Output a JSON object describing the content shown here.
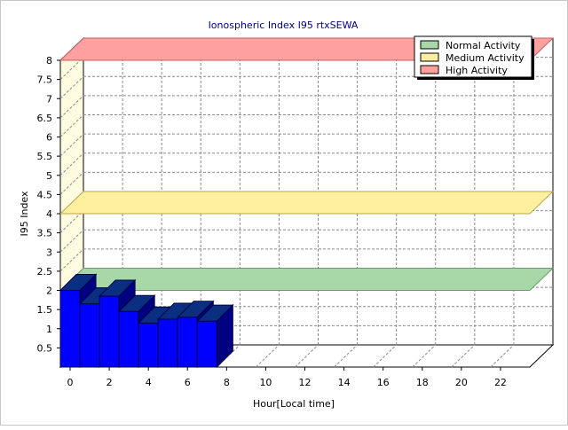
{
  "chart_data": {
    "type": "bar",
    "title": "Ionospheric Index I95 rtxSEWA",
    "xlabel": "Hour[Local time]",
    "ylabel": "I95 Index",
    "x_ticks": [
      "0",
      "2",
      "4",
      "6",
      "8",
      "10",
      "12",
      "14",
      "16",
      "18",
      "20",
      "22"
    ],
    "y_ticks": [
      "0.5",
      "1",
      "1.5",
      "2",
      "2.5",
      "3",
      "3.5",
      "4",
      "4.5",
      "5",
      "5.5",
      "6",
      "6.5",
      "7",
      "7.5",
      "8"
    ],
    "xlim": [
      0,
      24
    ],
    "ylim": [
      0,
      8
    ],
    "grid": true,
    "legend_position": "top-right",
    "hours": [
      0,
      1,
      2,
      3,
      4,
      5,
      6,
      7
    ],
    "values": [
      2.0,
      1.65,
      1.85,
      1.45,
      1.15,
      1.25,
      1.3,
      1.2
    ],
    "bar_color": "#0000ff",
    "bands": [
      {
        "name": "Normal Activity",
        "level": 2.0,
        "color": "#a8d8a8",
        "edge": "#6a9a6a"
      },
      {
        "name": "Medium Activity",
        "level": 4.0,
        "color": "#fff0a0",
        "edge": "#b8a850"
      },
      {
        "name": "High Activity",
        "level": 8.0,
        "color": "#ffa0a0",
        "edge": "#c06060"
      }
    ]
  }
}
